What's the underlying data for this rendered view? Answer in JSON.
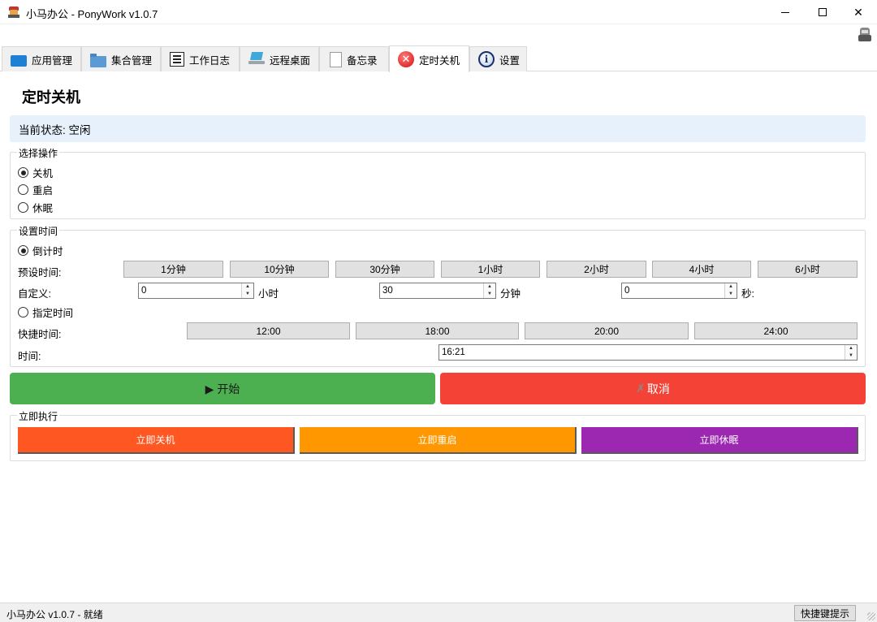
{
  "window": {
    "title": "小马办公 - PonyWork v1.0.7",
    "min_label": "",
    "close_label": "✕"
  },
  "tabs": [
    {
      "label": "应用管理",
      "icon": "monitor-icon"
    },
    {
      "label": "集合管理",
      "icon": "folder-icon"
    },
    {
      "label": "工作日志",
      "icon": "document-icon"
    },
    {
      "label": "远程桌面",
      "icon": "laptop-icon"
    },
    {
      "label": "备忘录",
      "icon": "page-icon"
    },
    {
      "label": "定时关机",
      "icon": "close-circle-icon",
      "active": true
    },
    {
      "label": "设置",
      "icon": "info-icon"
    }
  ],
  "page": {
    "title": "定时关机",
    "status": "当前状态: 空闲"
  },
  "operation": {
    "title": "选择操作",
    "options": [
      "关机",
      "重启",
      "休眠"
    ],
    "selected": "关机"
  },
  "time": {
    "title": "设置时间",
    "countdown_label": "倒计时",
    "preset_label": "预设时间:",
    "presets": [
      "1分钟",
      "10分钟",
      "30分钟",
      "1小时",
      "2小时",
      "4小时",
      "6小时"
    ],
    "custom_label": "自定义:",
    "hours_value": "0",
    "hours_unit": "小时",
    "minutes_value": "30",
    "minutes_unit": "分钟",
    "seconds_value": "0",
    "seconds_unit": "秒:",
    "specific_label": "指定时间",
    "quick_label": "快捷时间:",
    "quick_times": [
      "12:00",
      "18:00",
      "20:00",
      "24:00"
    ],
    "time_label": "时间:",
    "time_value": "16:21"
  },
  "actions": {
    "start_label": "▶ 开始",
    "cancel_x": "✗",
    "cancel_label": "取消",
    "colors": {
      "start": "#4caf50",
      "cancel": "#f44336"
    }
  },
  "immediate": {
    "title": "立即执行",
    "shutdown": "立即关机",
    "restart": "立即重启",
    "sleep": "立即休眠",
    "colors": {
      "shutdown": "#ff5722",
      "restart": "#ff9800",
      "sleep": "#9c27b0"
    }
  },
  "statusbar": {
    "text": "小马办公 v1.0.7 - 就绪",
    "hotkey_label": "快捷键提示"
  }
}
